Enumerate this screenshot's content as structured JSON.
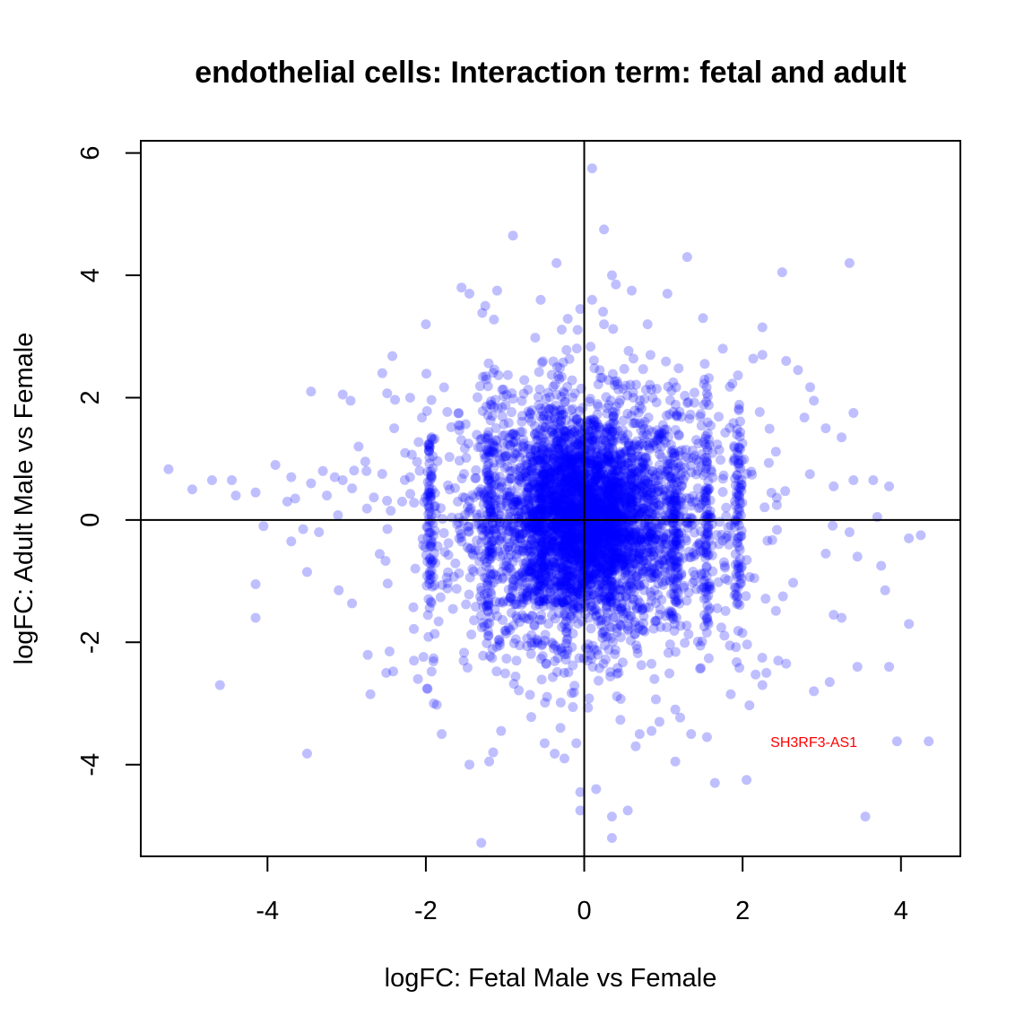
{
  "chart_data": {
    "type": "scatter",
    "title": "endothelial cells: Interaction term: fetal and adult",
    "xlabel": "logFC: Fetal Male vs Female",
    "ylabel": "logFC: Adult Male vs Female",
    "xlim": [
      -5.6,
      4.75
    ],
    "ylim": [
      -5.5,
      6.2
    ],
    "xticks": [
      -4,
      -2,
      0,
      2,
      4
    ],
    "yticks": [
      -4,
      -2,
      0,
      2,
      4,
      6
    ],
    "xtick_labels": [
      "-4",
      "-2",
      "0",
      "2",
      "4"
    ],
    "ytick_labels": [
      "-4",
      "-2",
      "0",
      "2",
      "4",
      "6"
    ],
    "reference_lines": {
      "x": 0,
      "y": 0
    },
    "point_color": "#0000ff",
    "point_opacity": 0.25,
    "grid": false,
    "annotations": [
      {
        "label": "SH3RF3-AS1",
        "x": 2.9,
        "y": -3.62,
        "color": "#ff0000"
      }
    ],
    "series": [
      {
        "points": [
          [
            -5.25,
            0.83
          ],
          [
            -4.95,
            0.5
          ],
          [
            -4.7,
            0.65
          ],
          [
            -4.45,
            0.65
          ],
          [
            -4.4,
            0.4
          ],
          [
            -4.6,
            -2.7
          ],
          [
            -4.15,
            0.45
          ],
          [
            -4.15,
            -1.05
          ],
          [
            -4.15,
            -1.6
          ],
          [
            -4.05,
            -0.1
          ],
          [
            -3.9,
            0.9
          ],
          [
            -3.75,
            0.3
          ],
          [
            -3.7,
            0.7
          ],
          [
            -3.65,
            0.35
          ],
          [
            -3.55,
            -0.15
          ],
          [
            -3.5,
            -0.85
          ],
          [
            -3.5,
            -3.82
          ],
          [
            -3.7,
            -0.35
          ],
          [
            -3.45,
            0.6
          ],
          [
            -3.35,
            -0.2
          ],
          [
            -3.3,
            0.8
          ],
          [
            -3.25,
            0.4
          ],
          [
            -3.15,
            0.7
          ],
          [
            -3.1,
            -1.15
          ],
          [
            -3.05,
            0.65
          ],
          [
            -2.95,
            1.95
          ],
          [
            -2.85,
            1.2
          ],
          [
            -2.75,
            0.8
          ],
          [
            -2.55,
            2.4
          ],
          [
            -2.4,
            1.5
          ],
          [
            -2.3,
            0.3
          ],
          [
            -2.2,
            0.7
          ],
          [
            -2.15,
            -2.3
          ],
          [
            -2.1,
            -2.6
          ],
          [
            -3.45,
            2.1
          ],
          [
            -3.05,
            2.05
          ],
          [
            -0.9,
            4.65
          ],
          [
            -1.1,
            3.75
          ],
          [
            -1.25,
            3.5
          ],
          [
            -1.45,
            3.7
          ],
          [
            -1.55,
            3.8
          ],
          [
            -0.55,
            3.6
          ],
          [
            -0.35,
            4.2
          ],
          [
            -0.05,
            3.45
          ],
          [
            0.1,
            3.6
          ],
          [
            0.4,
            3.85
          ],
          [
            0.35,
            4.0
          ],
          [
            0.25,
            3.2
          ],
          [
            0.6,
            3.75
          ],
          [
            0.8,
            3.2
          ],
          [
            1.05,
            3.7
          ],
          [
            1.5,
            3.3
          ],
          [
            1.75,
            2.8
          ],
          [
            2.25,
            3.15
          ],
          [
            2.5,
            4.05
          ],
          [
            3.35,
            4.2
          ],
          [
            0.1,
            5.75
          ],
          [
            0.25,
            4.75
          ],
          [
            1.3,
            4.3
          ],
          [
            -2.0,
            3.2
          ],
          [
            2.25,
            2.7
          ],
          [
            2.55,
            2.6
          ],
          [
            2.7,
            2.45
          ],
          [
            2.9,
            1.95
          ],
          [
            3.05,
            1.5
          ],
          [
            3.25,
            1.35
          ],
          [
            3.4,
            1.75
          ],
          [
            2.85,
            0.75
          ],
          [
            3.15,
            0.55
          ],
          [
            3.4,
            0.65
          ],
          [
            3.65,
            0.65
          ],
          [
            3.85,
            0.55
          ],
          [
            3.7,
            0.05
          ],
          [
            3.35,
            -0.2
          ],
          [
            3.05,
            -0.55
          ],
          [
            3.45,
            -0.6
          ],
          [
            3.75,
            -0.75
          ],
          [
            3.8,
            -1.15
          ],
          [
            4.1,
            -0.3
          ],
          [
            4.25,
            -0.25
          ],
          [
            4.1,
            -1.7
          ],
          [
            3.85,
            -2.4
          ],
          [
            3.45,
            -2.4
          ],
          [
            3.25,
            -1.6
          ],
          [
            3.15,
            -1.55
          ],
          [
            2.9,
            -2.8
          ],
          [
            2.55,
            -2.35
          ],
          [
            2.3,
            -2.5
          ],
          [
            2.05,
            -4.25
          ],
          [
            1.65,
            -4.3
          ],
          [
            1.55,
            -3.55
          ],
          [
            1.35,
            -3.5
          ],
          [
            1.15,
            -3.1
          ],
          [
            1.15,
            -3.95
          ],
          [
            0.95,
            -3.3
          ],
          [
            0.65,
            -3.7
          ],
          [
            0.55,
            -4.75
          ],
          [
            0.35,
            -4.85
          ],
          [
            0.35,
            -5.2
          ],
          [
            0.15,
            -4.4
          ],
          [
            -0.05,
            -4.75
          ],
          [
            -0.05,
            -4.45
          ],
          [
            -0.1,
            -3.65
          ],
          [
            -0.25,
            -3.9
          ],
          [
            -0.5,
            -3.65
          ],
          [
            -1.05,
            -3.45
          ],
          [
            -1.15,
            -3.8
          ],
          [
            -1.2,
            -3.95
          ],
          [
            -1.45,
            -4.0
          ],
          [
            -1.3,
            -5.28
          ],
          [
            -1.8,
            -3.5
          ],
          [
            -1.9,
            -3.0
          ],
          [
            -2.7,
            -2.85
          ],
          [
            -2.5,
            -2.5
          ],
          [
            3.55,
            -4.85
          ],
          [
            4.35,
            -3.62
          ],
          [
            3.95,
            -3.62
          ],
          [
            2.25,
            -2.7
          ],
          [
            2.45,
            -2.3
          ],
          [
            3.1,
            -2.65
          ],
          [
            1.85,
            -2.85
          ],
          [
            0.7,
            -3.5
          ],
          [
            0.85,
            -3.45
          ],
          [
            -0.3,
            -3.4
          ]
        ]
      }
    ]
  }
}
